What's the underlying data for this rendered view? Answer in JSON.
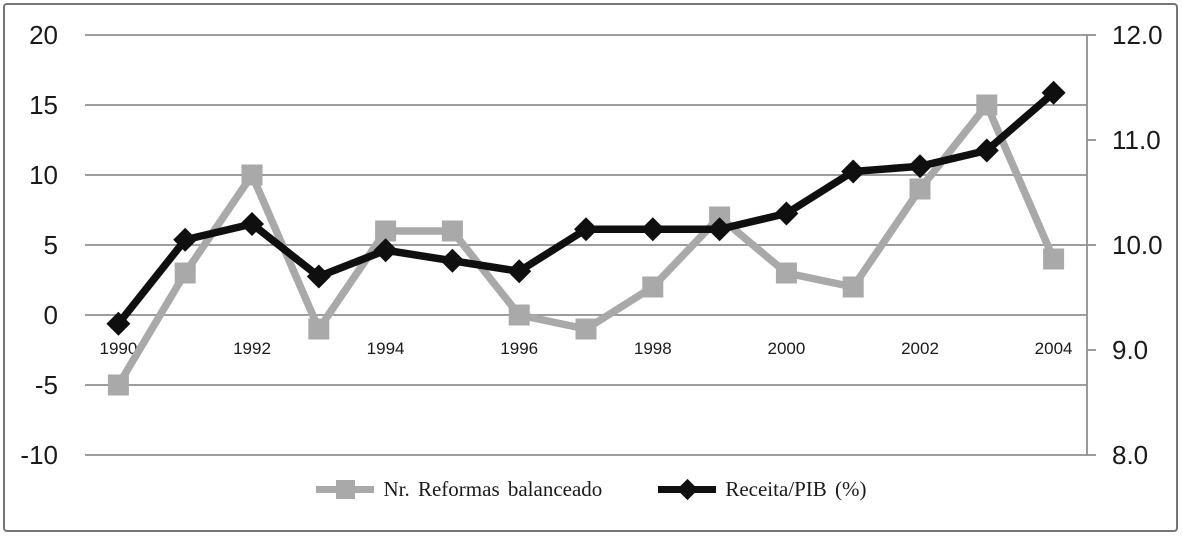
{
  "chart_data": {
    "type": "line",
    "title": "",
    "categories": [
      1990,
      1991,
      1992,
      1993,
      1994,
      1995,
      1996,
      1997,
      1998,
      1999,
      2000,
      2001,
      2002,
      2003,
      2004
    ],
    "x_tick_labels": [
      "1990",
      "1992",
      "1994",
      "1996",
      "1998",
      "2000",
      "2002",
      "2004"
    ],
    "x_label_every": 2,
    "series": [
      {
        "name": "Nr. Reformas balanceado",
        "axis": "left",
        "marker": "square",
        "color": "#a9a9a9",
        "values": [
          -5,
          3,
          10,
          -1,
          6,
          6,
          0,
          -1,
          2,
          7,
          3,
          2,
          9,
          15,
          4
        ]
      },
      {
        "name": "Receita/PIB (%)",
        "axis": "right",
        "marker": "diamond",
        "color": "#0f0f0f",
        "values": [
          9.25,
          10.05,
          10.2,
          9.7,
          9.95,
          9.85,
          9.75,
          10.15,
          10.15,
          10.15,
          10.3,
          10.7,
          10.75,
          10.9,
          11.45
        ]
      }
    ],
    "left_axis": {
      "min": -10,
      "max": 20,
      "tick_step": 5,
      "labels": [
        "20",
        "15",
        "10",
        "5",
        "0",
        "-5",
        "-10"
      ]
    },
    "right_axis": {
      "min": 8.0,
      "max": 12.0,
      "tick_step": 1.0,
      "labels": [
        "12.0",
        "11.0",
        "10.0",
        "9.0",
        "8.0"
      ]
    },
    "grid": true,
    "legend_position": "bottom",
    "grid_color": "#8f8f8f",
    "text_color": "#1a1a1a"
  }
}
